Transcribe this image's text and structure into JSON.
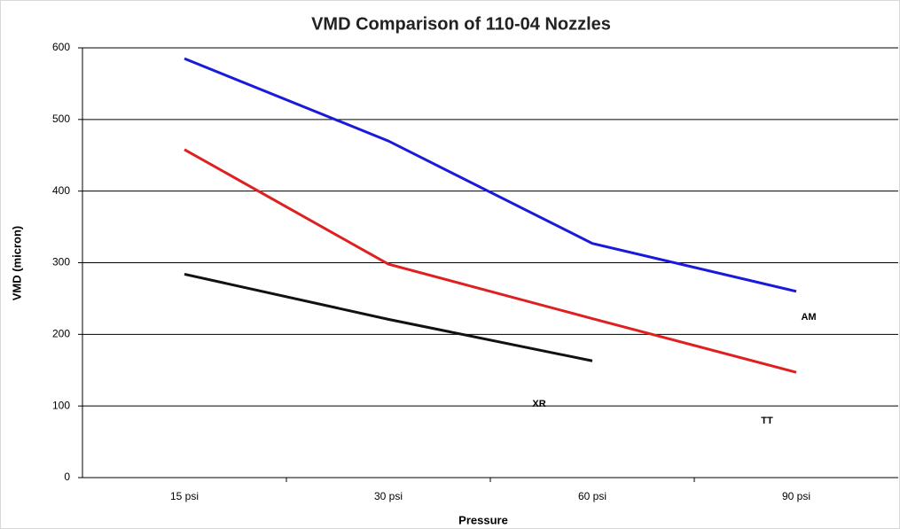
{
  "chart_data": {
    "type": "line",
    "title": "VMD Comparison of 110-04 Nozzles",
    "x_label": "Pressure",
    "y_label": "VMD (micron)",
    "categories": [
      "15 psi",
      "30 psi",
      "60 psi",
      "90 psi"
    ],
    "series": [
      {
        "name": "AM",
        "color": "#1a1adb",
        "values": [
          585,
          470,
          327,
          260
        ]
      },
      {
        "name": "TT",
        "color": "#e02020",
        "values": [
          458,
          298,
          222,
          147
        ]
      },
      {
        "name": "XR",
        "color": "#111111",
        "values": [
          284,
          221,
          163,
          null
        ]
      }
    ],
    "ylim": [
      0,
      600
    ],
    "yticks": [
      0,
      100,
      200,
      300,
      400,
      500,
      600
    ],
    "grid": true
  }
}
